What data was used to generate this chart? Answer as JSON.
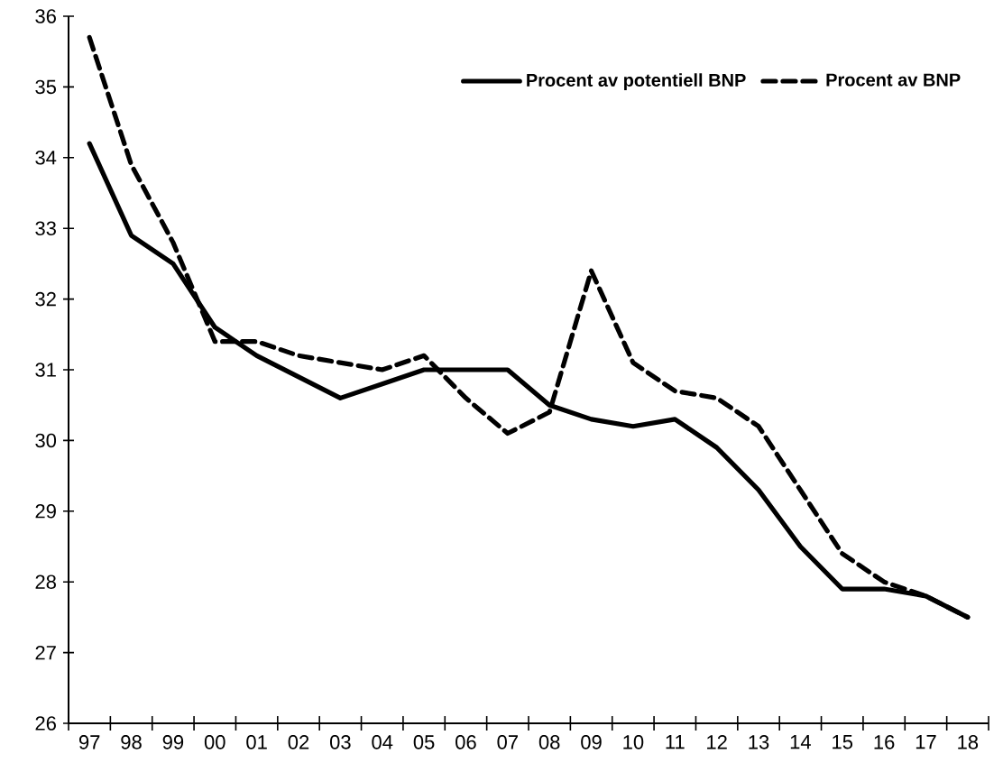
{
  "chart_data": {
    "type": "line",
    "categories": [
      "97",
      "98",
      "99",
      "00",
      "01",
      "02",
      "03",
      "04",
      "05",
      "06",
      "07",
      "08",
      "09",
      "10",
      "11",
      "12",
      "13",
      "14",
      "15",
      "16",
      "17",
      "18"
    ],
    "series": [
      {
        "name": "Procent av potentiell BNP",
        "color": "#000000",
        "line_style": "solid",
        "values": [
          34.2,
          32.9,
          32.5,
          31.6,
          31.2,
          30.9,
          30.6,
          30.8,
          31.0,
          31.0,
          31.0,
          30.5,
          30.3,
          30.2,
          30.3,
          29.9,
          29.3,
          28.5,
          27.9,
          27.9,
          27.8,
          27.5
        ]
      },
      {
        "name": "Procent av BNP",
        "color": "#000000",
        "line_style": "dashed",
        "values": [
          35.7,
          33.9,
          32.8,
          31.4,
          31.4,
          31.2,
          31.1,
          31.0,
          31.2,
          30.6,
          30.1,
          30.4,
          32.4,
          31.1,
          30.7,
          30.6,
          30.2,
          29.3,
          28.4,
          28.0,
          27.8,
          27.5
        ]
      }
    ],
    "ylim": [
      26,
      36
    ],
    "yticks": [
      26,
      27,
      28,
      29,
      30,
      31,
      32,
      33,
      34,
      35,
      36
    ],
    "legend": "top right",
    "grid": false
  }
}
